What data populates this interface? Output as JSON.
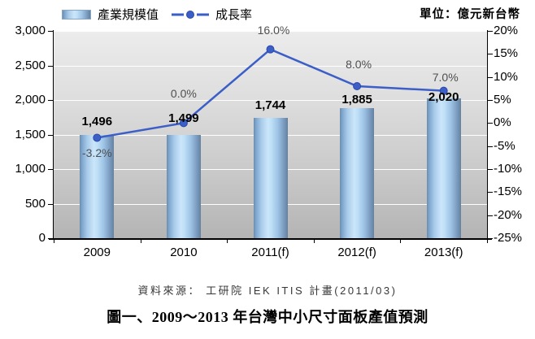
{
  "header": {
    "unit_label": "單位：億元新台幣"
  },
  "chart_data": {
    "type": "bar+line",
    "title": "",
    "categories": [
      "2009",
      "2010",
      "2011(f)",
      "2012(f)",
      "2013(f)"
    ],
    "series": [
      {
        "name": "產業規模值",
        "type": "bar",
        "axis": "left",
        "values": [
          1496,
          1499,
          1744,
          1885,
          2020
        ],
        "labels": [
          "1,496",
          "1,499",
          "1,744",
          "1,885",
          "2,020"
        ]
      },
      {
        "name": "成長率",
        "type": "line",
        "axis": "right",
        "values": [
          -3.2,
          0.0,
          16.0,
          8.0,
          7.0
        ],
        "labels": [
          "-3.2%",
          "0.0%",
          "16.0%",
          "8.0%",
          "7.0%"
        ]
      }
    ],
    "left_axis": {
      "min": 0,
      "max": 3000,
      "step": 500,
      "ticks": [
        "3,000",
        "2,500",
        "2,000",
        "1,500",
        "1,000",
        "500",
        "0"
      ]
    },
    "right_axis": {
      "min": -25,
      "max": 20,
      "step": 5,
      "ticks": [
        "20%",
        "15%",
        "10%",
        "5%",
        "0%",
        "-5%",
        "-10%",
        "-15%",
        "-20%",
        "-25%"
      ]
    },
    "grid": true,
    "legend_position": "top",
    "colors": {
      "line": "#3b5ec7",
      "marker": "#3c5ec7",
      "marker_edge": "#2b49a8",
      "bar_edge": "#6d8cab",
      "bar_highlight": "#cbe6fa",
      "plot_bg_top": "#ececec",
      "plot_bg_bottom": "#b4b4b4",
      "value_label": "#000000",
      "pct_label": "#4f4f4f"
    }
  },
  "footer": {
    "source": "資料來源： 工研院 IEK ITIS 計畫(2011/03)",
    "caption": "圖一、2009～2013 年台灣中小尺寸面板產值預測"
  }
}
